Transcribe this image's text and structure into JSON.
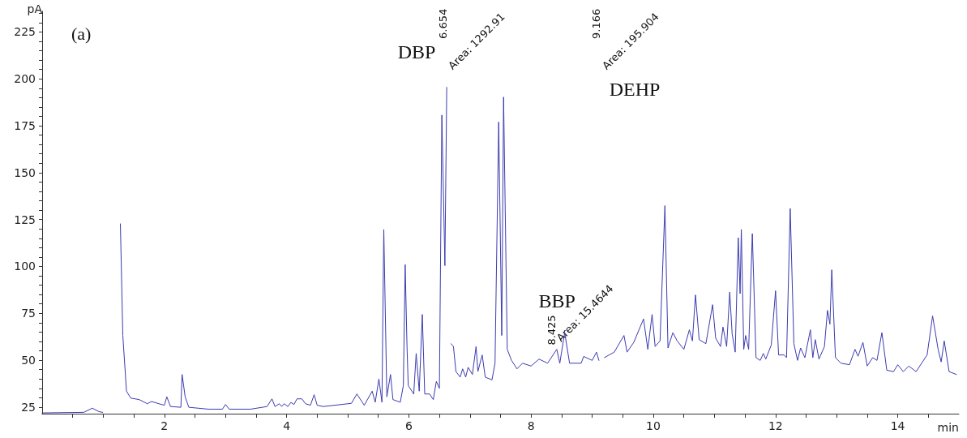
{
  "chart_data": {
    "type": "line",
    "xlabel": "min",
    "ylabel": "pA",
    "marker": "none",
    "line_style": "solid",
    "xlim": [
      0,
      15
    ],
    "ylim": [
      21.5,
      236
    ],
    "xticks": [
      {
        "value": 0.5,
        "label": null
      },
      {
        "value": 1,
        "label": null
      },
      {
        "value": 1.5,
        "label": null
      },
      2,
      {
        "value": 2.5,
        "label": null
      },
      {
        "value": 3,
        "label": null
      },
      {
        "value": 3.5,
        "label": null
      },
      4,
      {
        "value": 4.5,
        "label": null
      },
      {
        "value": 5,
        "label": null
      },
      {
        "value": 5.5,
        "label": null
      },
      6,
      {
        "value": 6.5,
        "label": null
      },
      {
        "value": 7,
        "label": null
      },
      {
        "value": 7.5,
        "label": null
      },
      8,
      {
        "value": 8.5,
        "label": null
      },
      {
        "value": 9,
        "label": null
      },
      {
        "value": 9.5,
        "label": null
      },
      10,
      {
        "value": 10.5,
        "label": null
      },
      {
        "value": 11,
        "label": null
      },
      {
        "value": 11.5,
        "label": null
      },
      12,
      {
        "value": 12.5,
        "label": null
      },
      {
        "value": 13,
        "label": null
      },
      {
        "value": 13.5,
        "label": null
      },
      14,
      {
        "value": 14.5,
        "label": null
      }
    ],
    "yticks": [
      25,
      {
        "value": 30,
        "label": null
      },
      {
        "value": 35,
        "label": null
      },
      {
        "value": 40,
        "label": null
      },
      {
        "value": 45,
        "label": null
      },
      50,
      {
        "value": 55,
        "label": null
      },
      {
        "value": 60,
        "label": null
      },
      {
        "value": 65,
        "label": null
      },
      {
        "value": 70,
        "label": null
      },
      75,
      {
        "value": 80,
        "label": null
      },
      {
        "value": 85,
        "label": null
      },
      {
        "value": 90,
        "label": null
      },
      {
        "value": 95,
        "label": null
      },
      100,
      {
        "value": 105,
        "label": null
      },
      {
        "value": 110,
        "label": null
      },
      {
        "value": 115,
        "label": null
      },
      {
        "value": 120,
        "label": null
      },
      125,
      {
        "value": 130,
        "label": null
      },
      {
        "value": 135,
        "label": null
      },
      {
        "value": 140,
        "label": null
      },
      {
        "value": 145,
        "label": null
      },
      150,
      {
        "value": 155,
        "label": null
      },
      {
        "value": 160,
        "label": null
      },
      {
        "value": 165,
        "label": null
      },
      {
        "value": 170,
        "label": null
      },
      175,
      {
        "value": 180,
        "label": null
      },
      {
        "value": 185,
        "label": null
      },
      {
        "value": 190,
        "label": null
      },
      {
        "value": 195,
        "label": null
      },
      200,
      {
        "value": 205,
        "label": null
      },
      {
        "value": 210,
        "label": null
      },
      {
        "value": 215,
        "label": null
      },
      {
        "value": 220,
        "label": null
      },
      225,
      {
        "value": 230,
        "label": null
      },
      {
        "value": 235,
        "label": null
      }
    ],
    "annotations": [
      "(a)",
      "DBP",
      "6.654",
      "Area: 1292.91",
      "DEHP",
      "9.166",
      "Area: 195.904",
      "BBP",
      {
        "text": "8.425",
        "x": 8.425,
        "y": 58
      },
      {
        "text": "Area: 15.4644",
        "x": 8.51,
        "y": 59
      }
    ],
    "series": [
      {
        "color": "#3b3bb0",
        "x": [
          0,
          0.68,
          0.82,
          0.93,
          0.99,
          1.0,
          1.13,
          1.26,
          1.28,
          1.32,
          1.38,
          1.45,
          1.59,
          1.72,
          1.79,
          1.91,
          2.0,
          2.04,
          2.1,
          2.27,
          2.29,
          2.34,
          2.4,
          2.72,
          2.95,
          3.0,
          3.06,
          3.41,
          3.68,
          3.76,
          3.81,
          3.88,
          3.92,
          3.96,
          4.02,
          4.07,
          4.12,
          4.17,
          4.25,
          4.31,
          4.39,
          4.45,
          4.5,
          4.6,
          5.06,
          5.15,
          5.27,
          5.4,
          5.45,
          5.51,
          5.56,
          5.59,
          5.64,
          5.7,
          5.74,
          5.86,
          5.91,
          5.94,
          5.97,
          5.99,
          6.08,
          6.12,
          6.17,
          6.22,
          6.26,
          6.34,
          6.4,
          6.45,
          6.5,
          6.54,
          6.59,
          6.62,
          6.654,
          6.69,
          6.73,
          6.77,
          6.84,
          6.88,
          6.93,
          6.97,
          7.04,
          7.1,
          7.13,
          7.2,
          7.25,
          7.36,
          7.41,
          7.47,
          7.52,
          7.55,
          7.61,
          7.68,
          7.77,
          7.86,
          8.0,
          8.13,
          8.27,
          8.42,
          8.47,
          8.55,
          8.63,
          8.82,
          8.86,
          9.0,
          9.07,
          9.11,
          9.166,
          9.2,
          9.36,
          9.52,
          9.57,
          9.68,
          9.84,
          9.91,
          9.98,
          10.03,
          10.11,
          10.19,
          10.24,
          10.32,
          10.39,
          10.5,
          10.59,
          10.64,
          10.69,
          10.75,
          10.86,
          10.97,
          11.02,
          11.1,
          11.14,
          11.2,
          11.25,
          11.29,
          11.34,
          11.39,
          11.42,
          11.44,
          11.48,
          11.51,
          11.56,
          11.62,
          11.68,
          11.75,
          11.8,
          11.84,
          11.93,
          12.0,
          12.05,
          12.14,
          12.18,
          12.24,
          12.3,
          12.36,
          12.41,
          12.48,
          12.57,
          12.61,
          12.65,
          12.71,
          12.8,
          12.85,
          12.89,
          12.92,
          12.98,
          13.07,
          13.21,
          13.3,
          13.35,
          13.43,
          13.5,
          13.59,
          13.66,
          13.74,
          13.82,
          13.93,
          14.0,
          14.09,
          14.18,
          14.3,
          14.39,
          14.48,
          14.57,
          14.66,
          14.71,
          14.76,
          14.84,
          14.96
        ],
        "values": [
          21.9,
          22.2,
          24.4,
          22.6,
          22.2,
          null,
          null,
          null,
          122.7,
          63.2,
          33.5,
          29.8,
          29,
          26.8,
          28,
          26.8,
          26,
          30.5,
          25.3,
          24.9,
          42.4,
          30.5,
          24.9,
          23.9,
          23.9,
          26.4,
          23.9,
          23.9,
          25.3,
          29.4,
          25.3,
          26.8,
          25.3,
          26.8,
          25.3,
          27.5,
          26.4,
          29.4,
          29.4,
          26.8,
          26,
          31.6,
          26,
          25.3,
          27,
          32,
          26,
          33.5,
          27.6,
          40,
          27.6,
          119.7,
          30.5,
          42.4,
          29,
          27.6,
          36.5,
          101,
          57.3,
          36.5,
          32,
          53.6,
          33.5,
          74.4,
          32,
          32,
          29,
          38.7,
          35,
          180.7,
          100.4,
          195.5,
          null,
          58.8,
          57.3,
          44,
          41,
          45.4,
          41,
          46.2,
          42.4,
          57.3,
          44,
          52.8,
          41,
          39.5,
          48.4,
          177,
          63.2,
          190.3,
          55.8,
          49.9,
          45.4,
          48.4,
          46.9,
          50.6,
          48.4,
          55.8,
          48.4,
          64.7,
          48.4,
          48.4,
          52,
          49.9,
          54.3,
          49.9,
          null,
          51.4,
          54.3,
          63.2,
          54.3,
          59.5,
          72,
          55.8,
          74.4,
          57.3,
          60.3,
          132.4,
          56.5,
          64.7,
          60.3,
          55.8,
          66.2,
          60.3,
          84.8,
          61,
          58.8,
          79.6,
          61.8,
          57.3,
          67.7,
          57.3,
          86.3,
          64,
          54.3,
          115.3,
          85.5,
          119.7,
          55.8,
          63.2,
          55.8,
          117.5,
          51.4,
          49.9,
          53.6,
          50.6,
          58.1,
          87,
          52.8,
          52.8,
          51.4,
          130.9,
          58.8,
          49.9,
          56.5,
          51.4,
          66.2,
          51.4,
          61,
          50.6,
          57.3,
          76.6,
          69.2,
          98.2,
          51.4,
          48.4,
          47.6,
          55.8,
          52.1,
          59.5,
          46.9,
          51.4,
          49.9,
          64.7,
          44.7,
          43.9,
          47.6,
          43.9,
          46.9,
          43.9,
          48.4,
          52.8,
          73.6,
          55.8,
          49.1,
          60.3,
          43.9,
          42.4
        ]
      }
    ]
  }
}
